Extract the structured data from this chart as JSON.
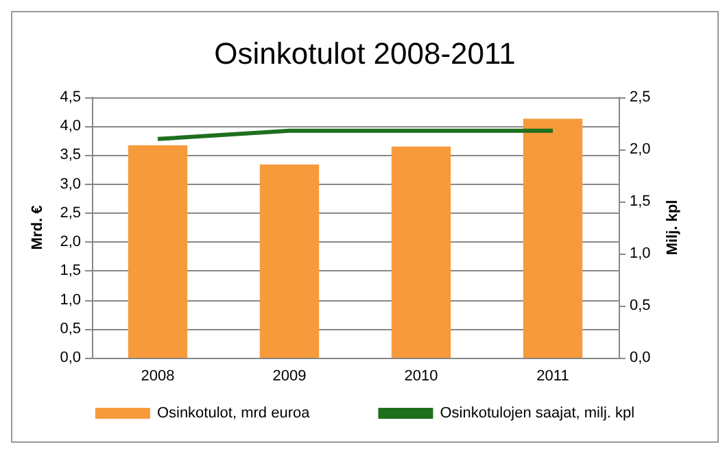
{
  "chart_data": {
    "type": "bar",
    "title": "Osinkotulot 2008-2011",
    "ylabel": "Mrd. €",
    "y2label": "Milj. kpl",
    "categories": [
      "2008",
      "2009",
      "2010",
      "2011"
    ],
    "series": [
      {
        "name": "Osinkotulot, mrd euroa",
        "color": "#f79a3c",
        "values": [
          3.67,
          3.34,
          3.65,
          4.13
        ]
      },
      {
        "name": "Osinkotulojen saajat, milj. kpl",
        "type": "line",
        "axis": "y2",
        "color": "#1f6f1f",
        "values": [
          2.1,
          2.18,
          2.18,
          2.18
        ]
      }
    ],
    "ylim": [
      0,
      4.5
    ],
    "yticks": [
      {
        "value": 0,
        "label": "0,0"
      },
      {
        "value": 0.5,
        "label": "0,5"
      },
      {
        "value": 1,
        "label": "1,0"
      },
      {
        "value": 1.5,
        "label": "1,5"
      },
      {
        "value": 2,
        "label": "2,0"
      },
      {
        "value": 2.5,
        "label": "2,5"
      },
      {
        "value": 3,
        "label": "3,0"
      },
      {
        "value": 3.5,
        "label": "3,5"
      },
      {
        "value": 4,
        "label": "4,0"
      },
      {
        "value": 4.5,
        "label": "4,5"
      }
    ],
    "y2lim": [
      0,
      2.5
    ],
    "y2ticks": [
      {
        "value": 0,
        "label": "0,0"
      },
      {
        "value": 0.5,
        "label": "0,5"
      },
      {
        "value": 1,
        "label": "1,0"
      },
      {
        "value": 1.5,
        "label": "1,5"
      },
      {
        "value": 2,
        "label": "2,0"
      },
      {
        "value": 2.5,
        "label": "2,5"
      }
    ],
    "grid": "y",
    "legend": "bottom",
    "marker": "none",
    "line_style": "solid"
  }
}
